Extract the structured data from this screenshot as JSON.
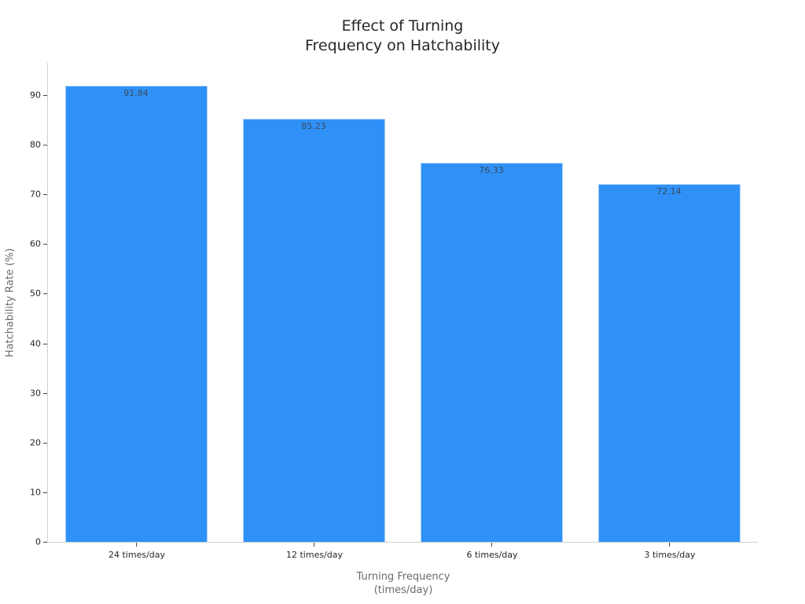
{
  "chart_data": {
    "type": "bar",
    "title": "Effect of Turning\nFrequency on Hatchability",
    "title_lines": [
      "Effect of Turning",
      "Frequency on Hatchability"
    ],
    "xlabel": "Turning Frequency\n(times/day)",
    "xlabel_lines": [
      "Turning Frequency",
      "(times/day)"
    ],
    "ylabel": "Hatchability Rate (%)",
    "categories": [
      "24 times/day",
      "12 times/day",
      "6 times/day",
      "3 times/day"
    ],
    "values": [
      91.84,
      85.23,
      76.33,
      72.14
    ],
    "value_labels": [
      "91.84",
      "85.23",
      "76.33",
      "72.14"
    ],
    "yticks": [
      0,
      10,
      20,
      30,
      40,
      50,
      60,
      70,
      80,
      90
    ],
    "ylim": [
      0,
      96.4
    ],
    "grid": false,
    "legend": null,
    "bar_color": "#2f91f7"
  }
}
